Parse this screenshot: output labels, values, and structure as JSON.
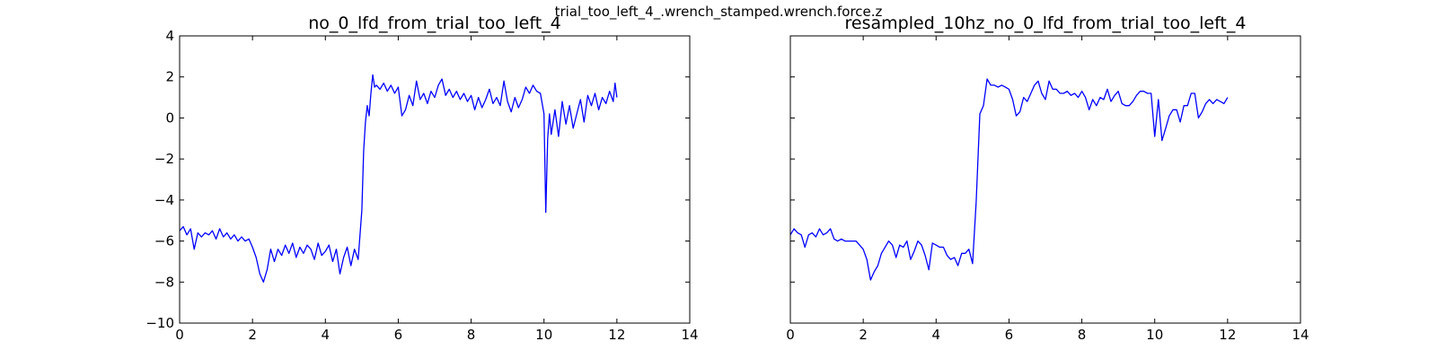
{
  "suptitle": "trial_too_left_4_.wrench_stamped.wrench.force.z",
  "colors": {
    "line": "#0000ff",
    "axes": "#000000"
  },
  "chart_data": [
    {
      "type": "line",
      "title": "no_0_lfd_from_trial_too_left_4",
      "xlabel": "",
      "ylabel": "",
      "xlim": [
        0,
        14
      ],
      "ylim": [
        -10,
        4
      ],
      "xticks": [
        0,
        2,
        4,
        6,
        8,
        10,
        12,
        14
      ],
      "yticks": [
        -10,
        -8,
        -6,
        -4,
        -2,
        0,
        2,
        4
      ],
      "show_y_tick_labels": true,
      "grid": false,
      "series": [
        {
          "x": [
            0.0,
            0.1,
            0.2,
            0.3,
            0.4,
            0.5,
            0.6,
            0.7,
            0.8,
            0.9,
            1.0,
            1.1,
            1.2,
            1.3,
            1.4,
            1.5,
            1.6,
            1.7,
            1.8,
            1.9,
            2.0,
            2.1,
            2.2,
            2.3,
            2.4,
            2.5,
            2.6,
            2.7,
            2.8,
            2.9,
            3.0,
            3.1,
            3.2,
            3.3,
            3.4,
            3.5,
            3.6,
            3.7,
            3.8,
            3.9,
            4.0,
            4.1,
            4.2,
            4.3,
            4.4,
            4.5,
            4.6,
            4.7,
            4.8,
            4.9,
            5.0,
            5.05,
            5.1,
            5.15,
            5.2,
            5.25,
            5.3,
            5.35,
            5.4,
            5.5,
            5.6,
            5.7,
            5.8,
            5.9,
            6.0,
            6.1,
            6.2,
            6.3,
            6.4,
            6.5,
            6.6,
            6.7,
            6.8,
            6.9,
            7.0,
            7.1,
            7.2,
            7.3,
            7.4,
            7.5,
            7.6,
            7.7,
            7.8,
            7.9,
            8.0,
            8.1,
            8.2,
            8.3,
            8.4,
            8.5,
            8.6,
            8.7,
            8.8,
            8.9,
            9.0,
            9.1,
            9.2,
            9.3,
            9.4,
            9.5,
            9.6,
            9.7,
            9.8,
            9.9,
            10.0,
            10.05,
            10.1,
            10.15,
            10.2,
            10.3,
            10.4,
            10.5,
            10.6,
            10.7,
            10.8,
            10.9,
            11.0,
            11.1,
            11.2,
            11.3,
            11.4,
            11.5,
            11.6,
            11.7,
            11.8,
            11.9,
            11.95,
            12.0
          ],
          "y": [
            -5.5,
            -5.3,
            -5.7,
            -5.4,
            -6.4,
            -5.6,
            -5.8,
            -5.6,
            -5.7,
            -5.5,
            -5.9,
            -5.4,
            -5.8,
            -5.6,
            -5.9,
            -5.7,
            -6.0,
            -5.8,
            -6.0,
            -5.9,
            -6.3,
            -6.8,
            -7.6,
            -8.0,
            -7.4,
            -6.4,
            -7.0,
            -6.4,
            -6.7,
            -6.2,
            -6.6,
            -6.1,
            -6.8,
            -6.3,
            -6.6,
            -6.2,
            -6.4,
            -6.9,
            -6.1,
            -6.7,
            -6.5,
            -6.2,
            -7.0,
            -6.4,
            -7.6,
            -6.8,
            -6.3,
            -7.2,
            -6.4,
            -6.9,
            -4.5,
            -1.6,
            -0.2,
            0.6,
            0.1,
            1.2,
            2.1,
            1.5,
            1.6,
            1.4,
            1.7,
            1.3,
            1.6,
            1.2,
            1.5,
            0.1,
            0.4,
            1.1,
            0.6,
            1.8,
            0.9,
            1.2,
            0.7,
            1.3,
            1.0,
            1.6,
            1.9,
            1.1,
            1.4,
            1.0,
            1.3,
            0.9,
            1.2,
            0.8,
            1.1,
            0.4,
            1.0,
            0.5,
            0.9,
            1.4,
            0.7,
            1.0,
            0.6,
            1.8,
            0.8,
            0.3,
            1.0,
            0.5,
            0.9,
            1.5,
            1.2,
            1.6,
            1.3,
            1.2,
            0.2,
            -4.6,
            -1.0,
            0.2,
            -0.8,
            0.4,
            -0.9,
            0.8,
            -0.3,
            0.6,
            -0.5,
            0.2,
            0.9,
            -0.2,
            1.1,
            0.6,
            1.2,
            0.4,
            1.0,
            0.7,
            1.3,
            0.8,
            1.7,
            1.0
          ]
        }
      ]
    },
    {
      "type": "line",
      "title": "resampled_10hz_no_0_lfd_from_trial_too_left_4",
      "xlabel": "",
      "ylabel": "",
      "xlim": [
        0,
        14
      ],
      "ylim": [
        -10,
        4
      ],
      "xticks": [
        0,
        2,
        4,
        6,
        8,
        10,
        12,
        14
      ],
      "yticks": [
        -10,
        -8,
        -6,
        -4,
        -2,
        0,
        2,
        4
      ],
      "show_y_tick_labels": false,
      "grid": false,
      "series": [
        {
          "x": [
            0.0,
            0.1,
            0.2,
            0.3,
            0.4,
            0.5,
            0.6,
            0.7,
            0.8,
            0.9,
            1.0,
            1.1,
            1.2,
            1.3,
            1.4,
            1.5,
            1.6,
            1.7,
            1.8,
            1.9,
            2.0,
            2.1,
            2.2,
            2.3,
            2.4,
            2.5,
            2.6,
            2.7,
            2.8,
            2.9,
            3.0,
            3.1,
            3.2,
            3.3,
            3.4,
            3.5,
            3.6,
            3.7,
            3.8,
            3.9,
            4.0,
            4.1,
            4.2,
            4.3,
            4.4,
            4.5,
            4.6,
            4.7,
            4.8,
            4.9,
            5.0,
            5.1,
            5.2,
            5.3,
            5.4,
            5.5,
            5.6,
            5.7,
            5.8,
            5.9,
            6.0,
            6.1,
            6.2,
            6.3,
            6.4,
            6.5,
            6.6,
            6.7,
            6.8,
            6.9,
            7.0,
            7.1,
            7.2,
            7.3,
            7.4,
            7.5,
            7.6,
            7.7,
            7.8,
            7.9,
            8.0,
            8.1,
            8.2,
            8.3,
            8.4,
            8.5,
            8.6,
            8.7,
            8.8,
            8.9,
            9.0,
            9.1,
            9.2,
            9.3,
            9.4,
            9.5,
            9.6,
            9.7,
            9.8,
            9.9,
            10.0,
            10.1,
            10.2,
            10.3,
            10.4,
            10.5,
            10.6,
            10.7,
            10.8,
            10.9,
            11.0,
            11.1,
            11.2,
            11.3,
            11.4,
            11.5,
            11.6,
            11.7,
            11.8,
            11.9,
            12.0
          ],
          "y": [
            -5.7,
            -5.4,
            -5.6,
            -5.7,
            -6.3,
            -5.7,
            -5.6,
            -5.8,
            -5.4,
            -5.7,
            -5.6,
            -5.4,
            -5.9,
            -6.0,
            -5.9,
            -6.0,
            -6.0,
            -6.0,
            -6.0,
            -6.2,
            -6.4,
            -6.9,
            -7.9,
            -7.5,
            -7.2,
            -6.6,
            -6.3,
            -6.0,
            -6.2,
            -6.8,
            -6.2,
            -6.3,
            -6.0,
            -6.9,
            -6.5,
            -6.0,
            -6.2,
            -6.7,
            -7.4,
            -6.1,
            -6.2,
            -6.3,
            -6.3,
            -6.7,
            -6.9,
            -6.8,
            -7.2,
            -6.6,
            -6.6,
            -6.4,
            -7.1,
            -4.1,
            0.2,
            0.6,
            1.9,
            1.6,
            1.6,
            1.5,
            1.6,
            1.5,
            1.4,
            0.9,
            0.1,
            0.3,
            1.0,
            0.8,
            1.2,
            1.6,
            1.8,
            1.2,
            0.9,
            1.8,
            1.4,
            1.4,
            1.2,
            1.2,
            1.3,
            1.1,
            1.2,
            1.0,
            1.3,
            1.0,
            0.4,
            0.9,
            0.6,
            1.0,
            0.9,
            1.4,
            0.8,
            1.1,
            1.3,
            0.7,
            0.6,
            0.6,
            0.8,
            1.1,
            1.3,
            1.3,
            1.2,
            1.2,
            -0.9,
            0.9,
            -1.1,
            -0.5,
            0.1,
            0.4,
            0.4,
            -0.2,
            0.6,
            0.6,
            1.2,
            1.2,
            0.0,
            0.3,
            0.7,
            0.9,
            0.7,
            0.9,
            0.8,
            0.7,
            1.0
          ]
        }
      ]
    }
  ]
}
